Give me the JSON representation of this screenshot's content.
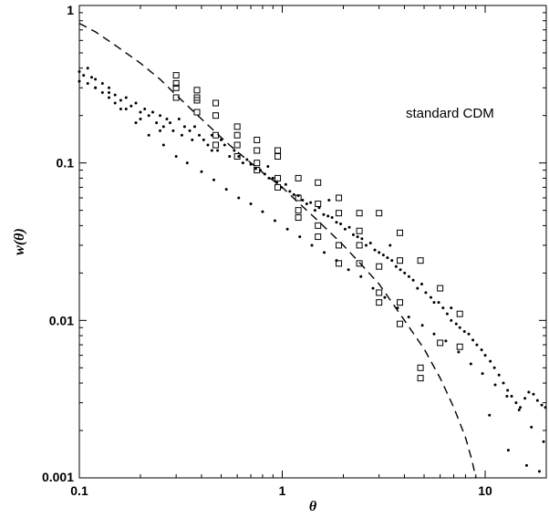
{
  "chart_data": {
    "type": "scatter",
    "xlabel": "θ",
    "ylabel": "w(θ)",
    "xscale": "log",
    "yscale": "log",
    "xlim": [
      0.1,
      20
    ],
    "ylim": [
      0.001,
      1
    ],
    "x_ticks": [
      {
        "value": 0.1,
        "label": "0.1"
      },
      {
        "value": 1,
        "label": "1"
      },
      {
        "value": 10,
        "label": "10"
      }
    ],
    "y_ticks": [
      {
        "value": 0.001,
        "label": "0.001"
      },
      {
        "value": 0.01,
        "label": "0.01"
      },
      {
        "value": 0.1,
        "label": "0.1"
      },
      {
        "value": 1,
        "label": "1"
      }
    ],
    "annotation": "standard CDM",
    "grid": false,
    "series": [
      {
        "style": "dashed-line",
        "x": [
          0.1,
          0.12,
          0.15,
          0.2,
          0.25,
          0.3,
          0.4,
          0.5,
          0.6,
          0.8,
          1.0,
          1.2,
          1.5,
          2.0,
          2.5,
          3.0,
          4.0,
          5.0,
          6.0,
          7.0,
          8.0,
          8.6,
          9.0
        ],
        "y": [
          0.77,
          0.68,
          0.56,
          0.43,
          0.34,
          0.27,
          0.19,
          0.145,
          0.118,
          0.087,
          0.07,
          0.056,
          0.043,
          0.03,
          0.022,
          0.017,
          0.01,
          0.0066,
          0.0043,
          0.0028,
          0.0018,
          0.0013,
          0.001
        ]
      },
      {
        "style": "open-squares",
        "x": [
          0.3,
          0.3,
          0.3,
          0.3,
          0.38,
          0.38,
          0.38,
          0.38,
          0.47,
          0.47,
          0.47,
          0.47,
          0.6,
          0.6,
          0.6,
          0.6,
          0.75,
          0.75,
          0.75,
          0.75,
          0.95,
          0.95,
          0.95,
          0.95,
          1.2,
          1.2,
          1.2,
          1.2,
          1.5,
          1.5,
          1.5,
          1.5,
          1.9,
          1.9,
          1.9,
          1.9,
          2.4,
          2.4,
          2.4,
          2.4,
          3.0,
          3.0,
          3.0,
          3.0,
          3.8,
          3.8,
          3.8,
          3.8,
          4.8,
          4.8,
          4.8,
          6.0,
          6.0,
          7.5,
          7.5
        ],
        "y": [
          0.36,
          0.32,
          0.3,
          0.26,
          0.29,
          0.26,
          0.25,
          0.21,
          0.24,
          0.2,
          0.15,
          0.13,
          0.17,
          0.15,
          0.13,
          0.11,
          0.14,
          0.12,
          0.1,
          0.09,
          0.12,
          0.11,
          0.08,
          0.07,
          0.08,
          0.06,
          0.05,
          0.045,
          0.075,
          0.055,
          0.04,
          0.034,
          0.06,
          0.048,
          0.03,
          0.023,
          0.048,
          0.037,
          0.03,
          0.023,
          0.048,
          0.022,
          0.015,
          0.013,
          0.036,
          0.024,
          0.013,
          0.0095,
          0.024,
          0.005,
          0.0043,
          0.016,
          0.0072,
          0.011,
          0.0068
        ]
      },
      {
        "style": "dots",
        "x": [
          0.1,
          0.1,
          0.105,
          0.11,
          0.11,
          0.115,
          0.12,
          0.12,
          0.13,
          0.13,
          0.14,
          0.14,
          0.15,
          0.15,
          0.16,
          0.17,
          0.17,
          0.18,
          0.19,
          0.2,
          0.2,
          0.21,
          0.22,
          0.23,
          0.24,
          0.25,
          0.26,
          0.27,
          0.28,
          0.29,
          0.31,
          0.32,
          0.33,
          0.35,
          0.36,
          0.37,
          0.39,
          0.41,
          0.43,
          0.45,
          0.48,
          0.5,
          0.52,
          0.55,
          0.58,
          0.61,
          0.64,
          0.67,
          0.7,
          0.74,
          0.78,
          0.82,
          0.86,
          0.9,
          0.94,
          0.99,
          1.04,
          1.09,
          1.14,
          1.2,
          1.26,
          1.32,
          1.38,
          1.45,
          1.52,
          1.6,
          1.68,
          1.76,
          1.85,
          1.94,
          2.04,
          2.14,
          2.24,
          2.35,
          2.47,
          2.59,
          2.72,
          2.86,
          3.0,
          3.15,
          3.3,
          3.47,
          3.64,
          3.82,
          4.01,
          4.21,
          4.42,
          4.64,
          4.87,
          5.1,
          5.4,
          5.6,
          5.9,
          6.2,
          6.5,
          6.8,
          7.2,
          7.5,
          7.9,
          8.3,
          8.7,
          9.1,
          9.6,
          10.0,
          10.6,
          11.1,
          11.7,
          12.3,
          12.9,
          13.5,
          14.2,
          14.9,
          15.7,
          16.4,
          17.3,
          18.1,
          19.0,
          19.8,
          0.14,
          0.16,
          0.19,
          0.22,
          0.26,
          0.3,
          0.34,
          0.4,
          0.46,
          0.53,
          0.61,
          0.7,
          0.8,
          0.92,
          1.06,
          1.22,
          1.4,
          1.61,
          1.85,
          2.12,
          2.44,
          2.8,
          3.2,
          3.7,
          4.2,
          4.9,
          5.6,
          6.4,
          7.4,
          8.5,
          9.7,
          11.2,
          12.8,
          14.7,
          16.9,
          19.4,
          0.12,
          0.25,
          0.45,
          0.85,
          1.7,
          3.4,
          6.8,
          10.5,
          13.0,
          16.0,
          18.5
        ],
        "y": [
          0.38,
          0.33,
          0.36,
          0.4,
          0.32,
          0.35,
          0.34,
          0.3,
          0.32,
          0.28,
          0.3,
          0.26,
          0.27,
          0.24,
          0.25,
          0.26,
          0.22,
          0.23,
          0.24,
          0.21,
          0.19,
          0.22,
          0.2,
          0.21,
          0.18,
          0.2,
          0.17,
          0.19,
          0.18,
          0.16,
          0.19,
          0.15,
          0.17,
          0.16,
          0.14,
          0.17,
          0.15,
          0.14,
          0.13,
          0.15,
          0.12,
          0.14,
          0.13,
          0.11,
          0.12,
          0.11,
          0.1,
          0.105,
          0.098,
          0.092,
          0.09,
          0.085,
          0.08,
          0.08,
          0.075,
          0.07,
          0.073,
          0.066,
          0.063,
          0.062,
          0.058,
          0.055,
          0.056,
          0.05,
          0.052,
          0.047,
          0.046,
          0.045,
          0.042,
          0.041,
          0.038,
          0.039,
          0.035,
          0.034,
          0.033,
          0.03,
          0.031,
          0.028,
          0.027,
          0.026,
          0.025,
          0.024,
          0.022,
          0.021,
          0.02,
          0.019,
          0.018,
          0.016,
          0.017,
          0.015,
          0.014,
          0.013,
          0.013,
          0.012,
          0.011,
          0.01,
          0.0095,
          0.009,
          0.0085,
          0.0082,
          0.0075,
          0.007,
          0.0065,
          0.006,
          0.0055,
          0.005,
          0.0045,
          0.004,
          0.0036,
          0.0033,
          0.003,
          0.0028,
          0.0032,
          0.0035,
          0.0034,
          0.0031,
          0.0029,
          0.0028,
          0.28,
          0.22,
          0.18,
          0.15,
          0.13,
          0.11,
          0.1,
          0.088,
          0.078,
          0.068,
          0.06,
          0.055,
          0.049,
          0.043,
          0.038,
          0.034,
          0.03,
          0.027,
          0.024,
          0.021,
          0.019,
          0.016,
          0.014,
          0.012,
          0.0105,
          0.0093,
          0.0082,
          0.0074,
          0.0063,
          0.0053,
          0.0046,
          0.0039,
          0.0033,
          0.0027,
          0.0021,
          0.0017,
          0.3,
          0.16,
          0.12,
          0.095,
          0.058,
          0.03,
          0.012,
          0.0025,
          0.0015,
          0.0012,
          0.0011
        ]
      }
    ]
  }
}
